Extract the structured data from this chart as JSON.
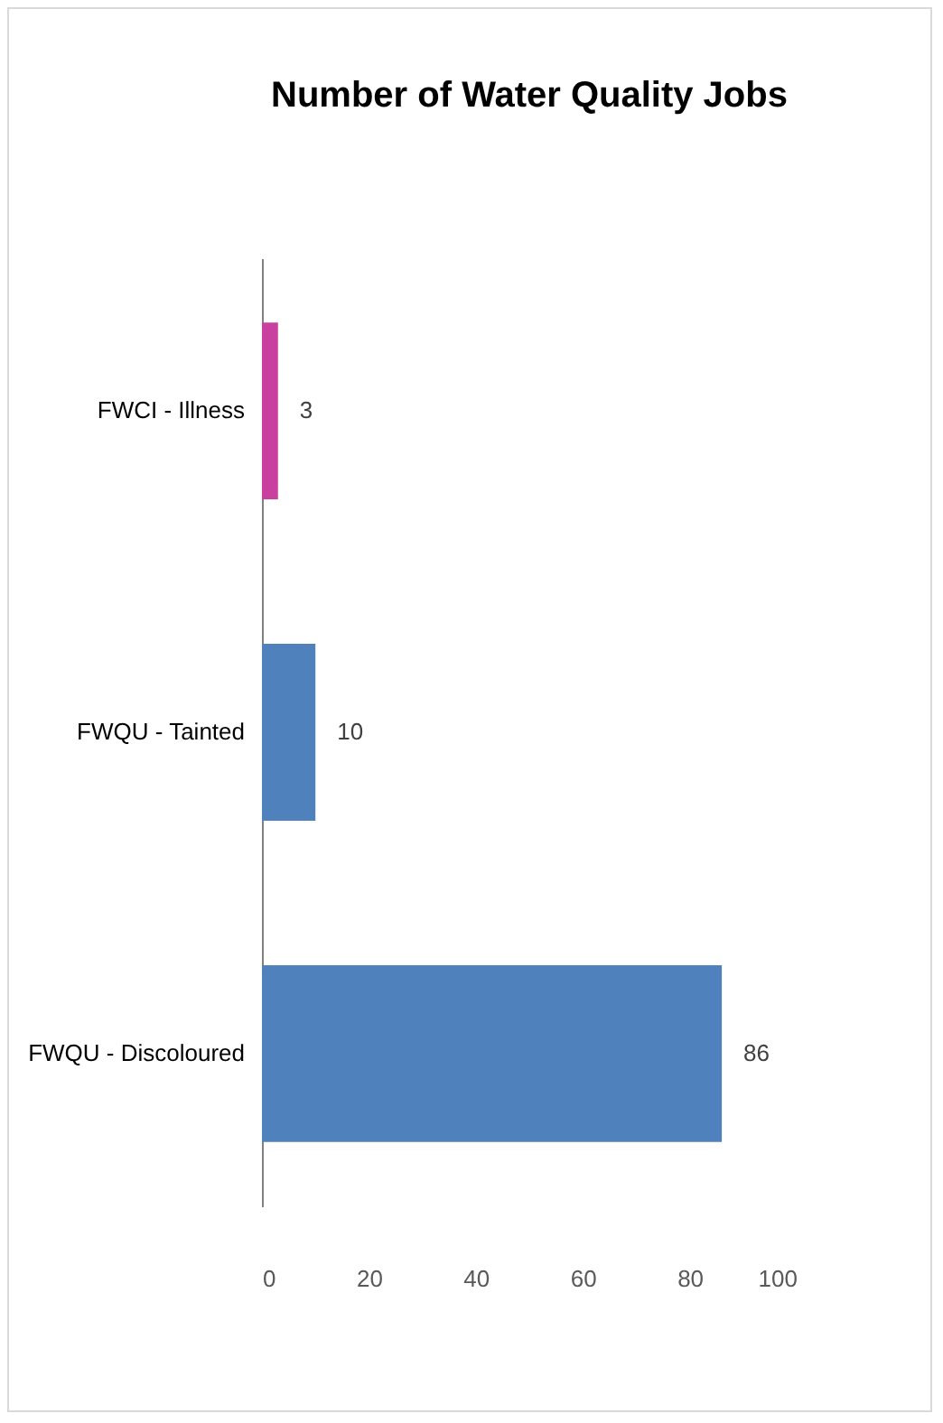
{
  "chart_data": {
    "type": "bar",
    "orientation": "horizontal",
    "title": "Number of Water Quality Jobs",
    "categories": [
      "FWCI - Illness",
      "FWQU - Tainted",
      "FWQU - Discoloured"
    ],
    "values": [
      3,
      10,
      86
    ],
    "colors": [
      "#c9409f",
      "#4f81bd",
      "#4f81bd"
    ],
    "xlim": [
      0,
      100
    ],
    "xticks": [
      0,
      20,
      40,
      60,
      80,
      100
    ],
    "data_labels": true,
    "grid": false
  }
}
